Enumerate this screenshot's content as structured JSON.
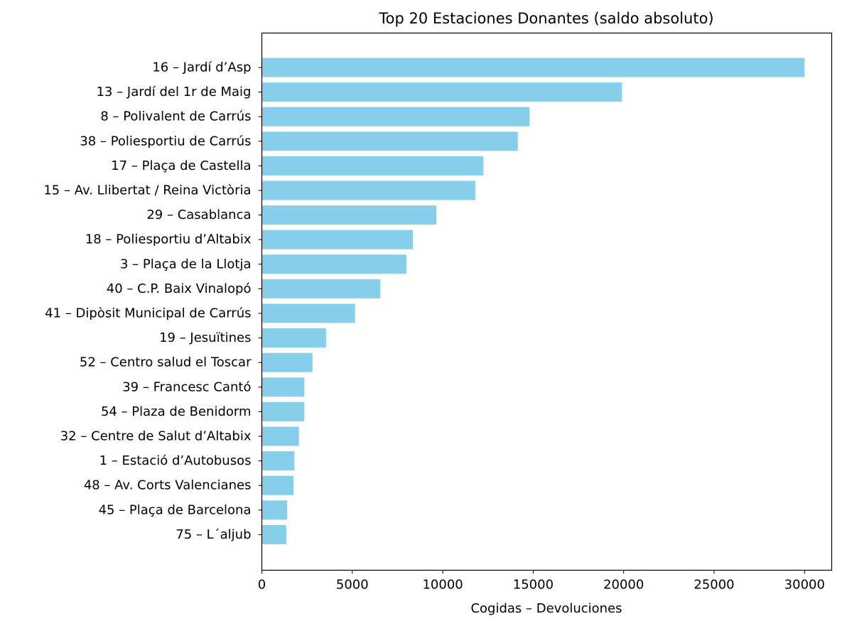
{
  "chart_data": {
    "type": "bar",
    "orientation": "horizontal",
    "title": "Top 20 Estaciones Donantes (saldo absoluto)",
    "xlabel": "Cogidas – Devoluciones",
    "ylabel": "",
    "xlim": [
      0,
      31500
    ],
    "xticks": [
      0,
      5000,
      10000,
      15000,
      20000,
      25000,
      30000
    ],
    "bar_color": "#87ceeb",
    "grid": false,
    "categories": [
      "16 – Jardí d’Asp",
      "13 – Jardí del 1r de Maig",
      "8 – Polivalent de Carrús",
      "38 – Poliesportiu de Carrús",
      "17 – Plaça de Castella",
      "15 – Av. Llibertat / Reina Victòria",
      "29 – Casablanca",
      "18 – Poliesportiu d’Altabix",
      "3 – Plaça de la Llotja",
      "40 – C.P. Baix Vinalopó",
      "41 – Dipòsit Municipal de Carrús",
      "19 – Jesuïtines",
      "52 – Centro salud el Toscar",
      "39 – Francesc Cantó",
      "54 – Plaza de Benidorm",
      "32 – Centre de Salut d’Altabix",
      "1 – Estació d’Autobusos",
      "48 – Av. Corts Valencianes",
      "45 – Plaça de Barcelona",
      "75 – L´aljub"
    ],
    "values": [
      30000,
      19900,
      14800,
      14150,
      12250,
      11800,
      9650,
      8350,
      8000,
      6550,
      5150,
      3550,
      2800,
      2350,
      2350,
      2050,
      1800,
      1750,
      1400,
      1350
    ]
  }
}
